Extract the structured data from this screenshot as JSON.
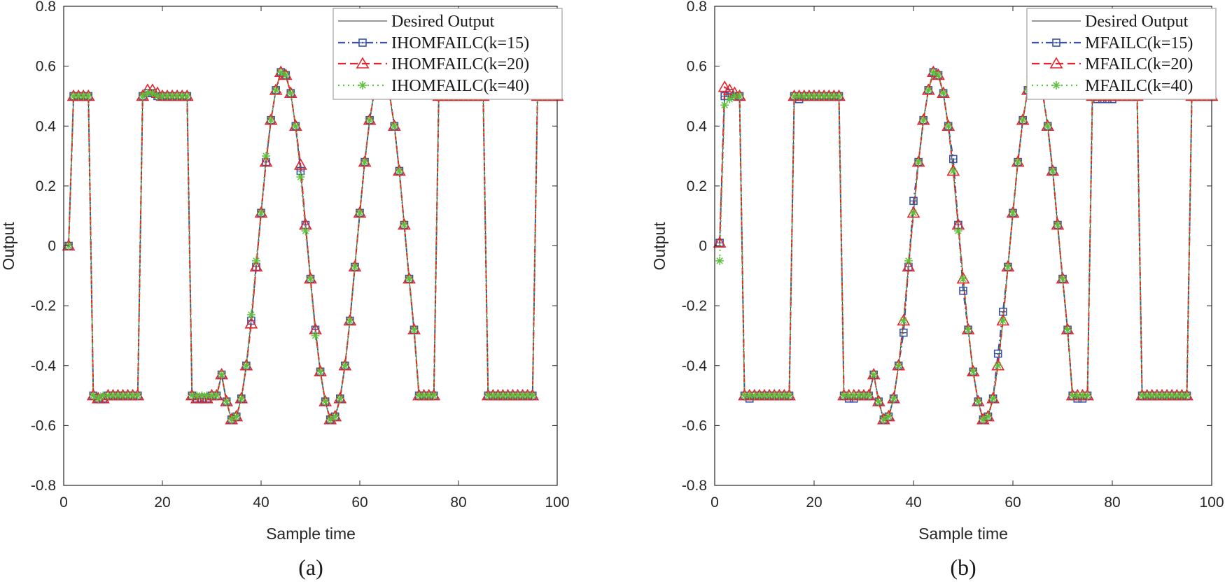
{
  "colors": {
    "desired": "#333333",
    "k15": "#3A54A4",
    "k20": "#E3242B",
    "k40": "#5CC23C",
    "axis": "#262626"
  },
  "chart_data": [
    {
      "type": "line",
      "caption": "(a)",
      "xlabel": "Sample time",
      "ylabel": "Output",
      "xlim": [
        0,
        100
      ],
      "ylim": [
        -0.8,
        0.8
      ],
      "xticks": [
        0,
        20,
        40,
        60,
        80,
        100
      ],
      "xtick_labels": [
        "0",
        "20",
        "40",
        "60",
        "80",
        "100"
      ],
      "yticks": [
        -0.8,
        -0.6,
        -0.4,
        -0.2,
        0,
        0.2,
        0.4,
        0.6,
        0.8
      ],
      "ytick_labels": [
        "-0.8",
        "-0.6",
        "-0.4",
        "-0.2",
        "0",
        "0.2",
        "0.4",
        "0.6",
        "0.8"
      ],
      "grid": false,
      "legend_position": "top-right",
      "x": [
        1,
        2,
        3,
        4,
        5,
        6,
        7,
        8,
        9,
        10,
        11,
        12,
        13,
        14,
        15,
        16,
        17,
        18,
        19,
        20,
        21,
        22,
        23,
        24,
        25,
        26,
        27,
        28,
        29,
        30,
        31,
        32,
        33,
        34,
        35,
        36,
        37,
        38,
        39,
        40,
        41,
        42,
        43,
        44,
        45,
        46,
        47,
        48,
        49,
        50,
        51,
        52,
        53,
        54,
        55,
        56,
        57,
        58,
        59,
        60,
        61,
        62,
        63,
        64,
        65,
        66,
        67,
        68,
        69,
        70,
        71,
        72,
        73,
        74,
        75,
        76,
        77,
        78,
        79,
        80,
        81,
        82,
        83,
        84,
        85,
        86,
        87,
        88,
        89,
        90,
        91,
        92,
        93,
        94,
        95,
        96,
        97,
        98,
        99,
        100
      ],
      "series": [
        {
          "name": "Desired Output",
          "style": "solid",
          "marker": "none",
          "color_key": "desired",
          "values": [
            0,
            0.5,
            0.5,
            0.5,
            0.5,
            -0.5,
            -0.5,
            -0.5,
            -0.5,
            -0.5,
            -0.5,
            -0.5,
            -0.5,
            -0.5,
            -0.5,
            0.5,
            0.5,
            0.5,
            0.5,
            0.5,
            0.5,
            0.5,
            0.5,
            0.5,
            0.5,
            -0.5,
            -0.5,
            -0.5,
            -0.5,
            -0.5,
            -0.5,
            -0.43,
            -0.52,
            -0.58,
            -0.57,
            -0.51,
            -0.4,
            -0.25,
            -0.07,
            0.11,
            0.28,
            0.42,
            0.52,
            0.58,
            0.57,
            0.51,
            0.4,
            0.25,
            0.07,
            -0.11,
            -0.28,
            -0.42,
            -0.52,
            -0.58,
            -0.57,
            -0.51,
            -0.4,
            -0.25,
            -0.07,
            0.11,
            0.28,
            0.42,
            0.52,
            0.58,
            0.57,
            0.51,
            0.4,
            0.25,
            0.07,
            -0.11,
            -0.28,
            -0.5,
            -0.5,
            -0.5,
            -0.5,
            0.5,
            0.5,
            0.5,
            0.5,
            0.5,
            0.5,
            0.5,
            0.5,
            0.5,
            0.5,
            -0.5,
            -0.5,
            -0.5,
            -0.5,
            -0.5,
            -0.5,
            -0.5,
            -0.5,
            -0.5,
            -0.5,
            0.5,
            0.5,
            0.5,
            0.5,
            0.5
          ]
        },
        {
          "name": "IHOMFAILC(k=15)",
          "style": "dashdot",
          "marker": "square",
          "color_key": "k15",
          "values": [
            0,
            0.5,
            0.5,
            0.5,
            0.5,
            -0.5,
            -0.51,
            -0.51,
            -0.5,
            -0.5,
            -0.5,
            -0.5,
            -0.5,
            -0.5,
            -0.5,
            0.5,
            0.51,
            0.51,
            0.5,
            0.5,
            0.5,
            0.5,
            0.5,
            0.5,
            0.5,
            -0.5,
            -0.51,
            -0.51,
            -0.51,
            -0.5,
            -0.5,
            -0.43,
            -0.52,
            -0.58,
            -0.57,
            -0.51,
            -0.4,
            -0.25,
            -0.07,
            0.11,
            0.28,
            0.42,
            0.52,
            0.58,
            0.57,
            0.51,
            0.4,
            0.25,
            0.07,
            -0.11,
            -0.28,
            -0.42,
            -0.52,
            -0.58,
            -0.57,
            -0.51,
            -0.4,
            -0.25,
            -0.07,
            0.11,
            0.28,
            0.42,
            0.52,
            0.58,
            0.57,
            0.51,
            0.4,
            0.25,
            0.07,
            -0.11,
            -0.28,
            -0.5,
            -0.5,
            -0.5,
            -0.5,
            0.5,
            0.5,
            0.5,
            0.5,
            0.5,
            0.5,
            0.5,
            0.5,
            0.5,
            0.5,
            -0.5,
            -0.5,
            -0.5,
            -0.5,
            -0.5,
            -0.5,
            -0.5,
            -0.5,
            -0.5,
            -0.5,
            0.5,
            0.5,
            0.5,
            0.5,
            0.5
          ]
        },
        {
          "name": "IHOMFAILC(k=20)",
          "style": "dashed",
          "marker": "triangle",
          "color_key": "k20",
          "values": [
            0,
            0.5,
            0.5,
            0.5,
            0.5,
            -0.5,
            -0.51,
            -0.51,
            -0.5,
            -0.5,
            -0.5,
            -0.5,
            -0.5,
            -0.5,
            -0.5,
            0.5,
            0.52,
            0.52,
            0.51,
            0.5,
            0.5,
            0.5,
            0.5,
            0.5,
            0.5,
            -0.5,
            -0.51,
            -0.51,
            -0.51,
            -0.5,
            -0.5,
            -0.43,
            -0.52,
            -0.58,
            -0.57,
            -0.51,
            -0.4,
            -0.26,
            -0.07,
            0.11,
            0.28,
            0.42,
            0.52,
            0.58,
            0.57,
            0.51,
            0.4,
            0.27,
            0.07,
            -0.11,
            -0.28,
            -0.42,
            -0.52,
            -0.58,
            -0.57,
            -0.51,
            -0.4,
            -0.25,
            -0.07,
            0.11,
            0.28,
            0.42,
            0.52,
            0.58,
            0.57,
            0.51,
            0.4,
            0.25,
            0.07,
            -0.11,
            -0.28,
            -0.5,
            -0.5,
            -0.5,
            -0.5,
            0.5,
            0.5,
            0.5,
            0.5,
            0.5,
            0.5,
            0.5,
            0.5,
            0.5,
            0.5,
            -0.5,
            -0.5,
            -0.5,
            -0.5,
            -0.5,
            -0.5,
            -0.5,
            -0.5,
            -0.5,
            -0.5,
            0.5,
            0.5,
            0.5,
            0.5,
            0.5
          ]
        },
        {
          "name": "IHOMFAILC(k=40)",
          "style": "dotted",
          "marker": "asterisk",
          "color_key": "k40",
          "values": [
            0,
            0.5,
            0.5,
            0.5,
            0.5,
            -0.5,
            -0.51,
            -0.5,
            -0.5,
            -0.5,
            -0.5,
            -0.5,
            -0.5,
            -0.5,
            -0.5,
            0.5,
            0.51,
            0.51,
            0.5,
            0.5,
            0.5,
            0.5,
            0.5,
            0.5,
            0.5,
            -0.5,
            -0.5,
            -0.5,
            -0.5,
            -0.5,
            -0.5,
            -0.43,
            -0.52,
            -0.58,
            -0.57,
            -0.51,
            -0.4,
            -0.23,
            -0.05,
            0.11,
            0.3,
            0.42,
            0.52,
            0.58,
            0.57,
            0.51,
            0.4,
            0.23,
            0.05,
            -0.11,
            -0.3,
            -0.42,
            -0.52,
            -0.58,
            -0.57,
            -0.51,
            -0.4,
            -0.25,
            -0.07,
            0.11,
            0.28,
            0.42,
            0.52,
            0.58,
            0.57,
            0.51,
            0.4,
            0.25,
            0.07,
            -0.11,
            -0.28,
            -0.5,
            -0.5,
            -0.5,
            -0.5,
            0.5,
            0.5,
            0.5,
            0.5,
            0.5,
            0.5,
            0.5,
            0.5,
            0.5,
            0.5,
            -0.5,
            -0.5,
            -0.5,
            -0.5,
            -0.5,
            -0.5,
            -0.5,
            -0.5,
            -0.5,
            -0.5,
            0.5,
            0.5,
            0.5,
            0.5,
            0.5
          ]
        }
      ]
    },
    {
      "type": "line",
      "caption": "(b)",
      "xlabel": "Sample time",
      "ylabel": "Output",
      "xlim": [
        0,
        100
      ],
      "ylim": [
        -0.8,
        0.8
      ],
      "xticks": [
        0,
        20,
        40,
        60,
        80,
        100
      ],
      "xtick_labels": [
        "0",
        "20",
        "40",
        "60",
        "80",
        "100"
      ],
      "yticks": [
        -0.8,
        -0.6,
        -0.4,
        -0.2,
        0,
        0.2,
        0.4,
        0.6,
        0.8
      ],
      "ytick_labels": [
        "-0.8",
        "-0.6",
        "-0.4",
        "-0.2",
        "0",
        "0.2",
        "0.4",
        "0.6",
        "0.8"
      ],
      "grid": false,
      "legend_position": "top-right",
      "x": [
        1,
        2,
        3,
        4,
        5,
        6,
        7,
        8,
        9,
        10,
        11,
        12,
        13,
        14,
        15,
        16,
        17,
        18,
        19,
        20,
        21,
        22,
        23,
        24,
        25,
        26,
        27,
        28,
        29,
        30,
        31,
        32,
        33,
        34,
        35,
        36,
        37,
        38,
        39,
        40,
        41,
        42,
        43,
        44,
        45,
        46,
        47,
        48,
        49,
        50,
        51,
        52,
        53,
        54,
        55,
        56,
        57,
        58,
        59,
        60,
        61,
        62,
        63,
        64,
        65,
        66,
        67,
        68,
        69,
        70,
        71,
        72,
        73,
        74,
        75,
        76,
        77,
        78,
        79,
        80,
        81,
        82,
        83,
        84,
        85,
        86,
        87,
        88,
        89,
        90,
        91,
        92,
        93,
        94,
        95,
        96,
        97,
        98,
        99,
        100
      ],
      "series": [
        {
          "name": "Desired Output",
          "style": "solid",
          "marker": "none",
          "color_key": "desired",
          "values": [
            0,
            0.5,
            0.5,
            0.5,
            0.5,
            -0.5,
            -0.5,
            -0.5,
            -0.5,
            -0.5,
            -0.5,
            -0.5,
            -0.5,
            -0.5,
            -0.5,
            0.5,
            0.5,
            0.5,
            0.5,
            0.5,
            0.5,
            0.5,
            0.5,
            0.5,
            0.5,
            -0.5,
            -0.5,
            -0.5,
            -0.5,
            -0.5,
            -0.5,
            -0.43,
            -0.52,
            -0.58,
            -0.57,
            -0.51,
            -0.4,
            -0.25,
            -0.07,
            0.11,
            0.28,
            0.42,
            0.52,
            0.58,
            0.57,
            0.51,
            0.4,
            0.25,
            0.07,
            -0.11,
            -0.28,
            -0.42,
            -0.52,
            -0.58,
            -0.57,
            -0.51,
            -0.4,
            -0.25,
            -0.07,
            0.11,
            0.28,
            0.42,
            0.52,
            0.58,
            0.57,
            0.51,
            0.4,
            0.25,
            0.07,
            -0.11,
            -0.28,
            -0.5,
            -0.5,
            -0.5,
            -0.5,
            0.5,
            0.5,
            0.5,
            0.5,
            0.5,
            0.5,
            0.5,
            0.5,
            0.5,
            0.5,
            -0.5,
            -0.5,
            -0.5,
            -0.5,
            -0.5,
            -0.5,
            -0.5,
            -0.5,
            -0.5,
            -0.5,
            0.5,
            0.5,
            0.5,
            0.5,
            0.5
          ]
        },
        {
          "name": "MFAILC(k=15)",
          "style": "dashdot",
          "marker": "square",
          "color_key": "k15",
          "values": [
            0.01,
            0.5,
            0.51,
            0.5,
            0.5,
            -0.5,
            -0.51,
            -0.5,
            -0.5,
            -0.5,
            -0.5,
            -0.5,
            -0.5,
            -0.5,
            -0.5,
            0.5,
            0.49,
            0.5,
            0.5,
            0.5,
            0.5,
            0.5,
            0.5,
            0.5,
            0.5,
            -0.5,
            -0.51,
            -0.51,
            -0.5,
            -0.5,
            -0.5,
            -0.43,
            -0.52,
            -0.58,
            -0.57,
            -0.51,
            -0.4,
            -0.29,
            -0.07,
            0.15,
            0.28,
            0.42,
            0.52,
            0.58,
            0.57,
            0.51,
            0.4,
            0.29,
            0.07,
            -0.15,
            -0.28,
            -0.42,
            -0.52,
            -0.58,
            -0.57,
            -0.51,
            -0.36,
            -0.22,
            -0.07,
            0.11,
            0.28,
            0.42,
            0.52,
            0.58,
            0.57,
            0.51,
            0.4,
            0.25,
            0.07,
            -0.11,
            -0.28,
            -0.5,
            -0.51,
            -0.51,
            -0.5,
            0.5,
            0.49,
            0.49,
            0.49,
            0.49,
            0.5,
            0.5,
            0.5,
            0.5,
            0.5,
            -0.5,
            -0.5,
            -0.5,
            -0.5,
            -0.5,
            -0.5,
            -0.5,
            -0.5,
            -0.5,
            -0.5,
            0.5,
            0.5,
            0.5,
            0.5,
            0.5
          ]
        },
        {
          "name": "MFAILC(k=20)",
          "style": "dashed",
          "marker": "triangle",
          "color_key": "k20",
          "values": [
            0.01,
            0.53,
            0.52,
            0.51,
            0.5,
            -0.5,
            -0.5,
            -0.5,
            -0.5,
            -0.5,
            -0.5,
            -0.5,
            -0.5,
            -0.5,
            -0.5,
            0.5,
            0.5,
            0.5,
            0.5,
            0.5,
            0.5,
            0.5,
            0.5,
            0.5,
            0.5,
            -0.5,
            -0.5,
            -0.5,
            -0.5,
            -0.5,
            -0.5,
            -0.43,
            -0.52,
            -0.58,
            -0.57,
            -0.51,
            -0.4,
            -0.25,
            -0.07,
            0.11,
            0.28,
            0.42,
            0.52,
            0.58,
            0.57,
            0.51,
            0.4,
            0.25,
            0.07,
            -0.11,
            -0.28,
            -0.42,
            -0.52,
            -0.58,
            -0.57,
            -0.51,
            -0.4,
            -0.25,
            -0.07,
            0.11,
            0.28,
            0.42,
            0.52,
            0.58,
            0.57,
            0.51,
            0.4,
            0.25,
            0.07,
            -0.11,
            -0.28,
            -0.5,
            -0.5,
            -0.5,
            -0.5,
            0.5,
            0.5,
            0.5,
            0.5,
            0.5,
            0.5,
            0.5,
            0.5,
            0.5,
            0.5,
            -0.5,
            -0.5,
            -0.5,
            -0.5,
            -0.5,
            -0.5,
            -0.5,
            -0.5,
            -0.5,
            -0.5,
            0.5,
            0.5,
            0.5,
            0.5,
            0.5
          ]
        },
        {
          "name": "MFAILC(k=40)",
          "style": "dotted",
          "marker": "asterisk",
          "color_key": "k40",
          "values": [
            -0.05,
            0.47,
            0.49,
            0.5,
            0.5,
            -0.5,
            -0.5,
            -0.5,
            -0.5,
            -0.5,
            -0.5,
            -0.5,
            -0.5,
            -0.5,
            -0.5,
            0.5,
            0.5,
            0.5,
            0.5,
            0.5,
            0.5,
            0.5,
            0.5,
            0.5,
            0.5,
            -0.5,
            -0.5,
            -0.5,
            -0.5,
            -0.5,
            -0.5,
            -0.43,
            -0.52,
            -0.58,
            -0.57,
            -0.51,
            -0.4,
            -0.25,
            -0.05,
            0.11,
            0.28,
            0.42,
            0.52,
            0.58,
            0.57,
            0.51,
            0.4,
            0.25,
            0.05,
            -0.11,
            -0.28,
            -0.42,
            -0.52,
            -0.58,
            -0.57,
            -0.51,
            -0.4,
            -0.25,
            -0.07,
            0.11,
            0.28,
            0.42,
            0.52,
            0.58,
            0.57,
            0.51,
            0.4,
            0.25,
            0.07,
            -0.11,
            -0.28,
            -0.5,
            -0.5,
            -0.5,
            -0.5,
            0.5,
            0.5,
            0.5,
            0.5,
            0.5,
            0.5,
            0.5,
            0.5,
            0.5,
            0.5,
            -0.5,
            -0.5,
            -0.5,
            -0.5,
            -0.5,
            -0.5,
            -0.5,
            -0.5,
            -0.5,
            -0.5,
            0.5,
            0.5,
            0.5,
            0.5,
            0.5
          ]
        }
      ]
    }
  ]
}
